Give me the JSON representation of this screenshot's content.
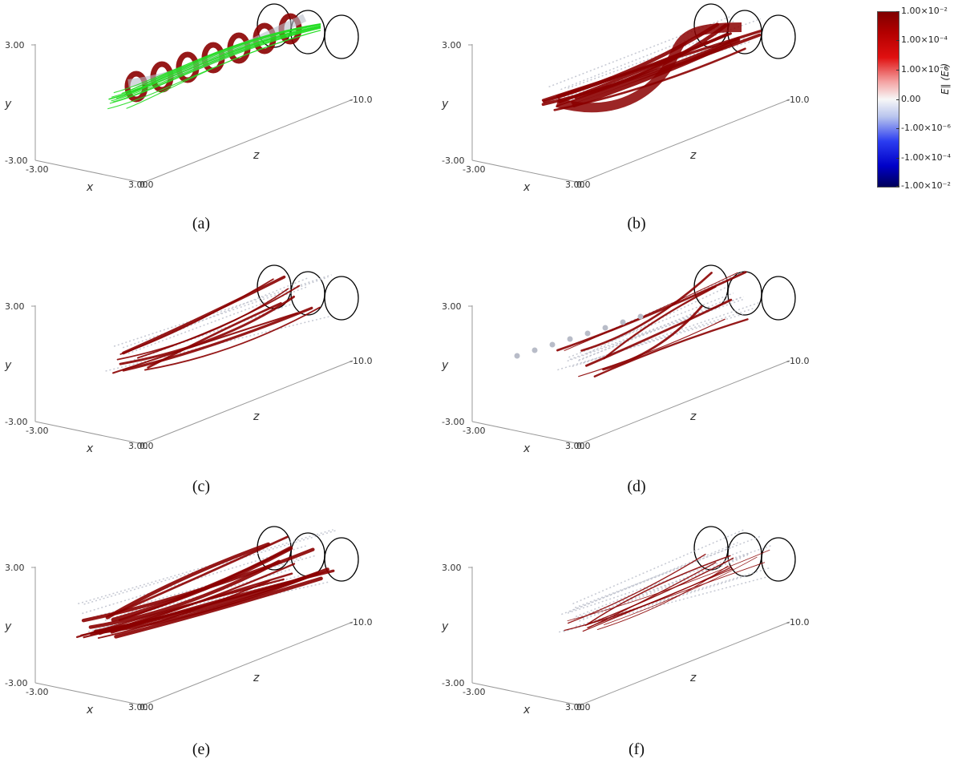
{
  "panels": [
    {
      "id": "a",
      "caption": "(a)",
      "y_max": "3.00",
      "y_min": "-3.00",
      "x_min": "-3.00",
      "x_max": "3.00",
      "z_start": "0.0",
      "z_end": "-10.0",
      "x_axis": "x",
      "y_axis": "y",
      "z_axis": "z",
      "has_field_lines": true,
      "density": "helical"
    },
    {
      "id": "b",
      "caption": "(b)",
      "y_max": "3.00",
      "y_min": "-3.00",
      "x_min": "-3.00",
      "x_max": "3.00",
      "z_start": "0.0",
      "z_end": "-10.0",
      "x_axis": "x",
      "y_axis": "y",
      "z_axis": "z",
      "has_field_lines": false,
      "density": "sheet"
    },
    {
      "id": "c",
      "caption": "(c)",
      "y_max": "3.00",
      "y_min": "-3.00",
      "x_min": "-3.00",
      "x_max": "3.00",
      "z_start": "0.0",
      "z_end": "-10.0",
      "x_axis": "x",
      "y_axis": "y",
      "z_axis": "z",
      "has_field_lines": false,
      "density": "sparse"
    },
    {
      "id": "d",
      "caption": "(d)",
      "y_max": "3.00",
      "y_min": "-3.00",
      "x_min": "-3.00",
      "x_max": "3.00",
      "z_start": "0.0",
      "z_end": "-10.0",
      "x_axis": "x",
      "y_axis": "y",
      "z_axis": "z",
      "has_field_lines": false,
      "density": "streaks"
    },
    {
      "id": "e",
      "caption": "(e)",
      "y_max": "3.00",
      "y_min": "-3.00",
      "x_min": "-3.00",
      "x_max": "3.00",
      "z_start": "0.0",
      "z_end": "-10.0",
      "x_axis": "x",
      "y_axis": "y",
      "z_axis": "z",
      "has_field_lines": false,
      "density": "dense"
    },
    {
      "id": "f",
      "caption": "(f)",
      "y_max": "3.00",
      "y_min": "-3.00",
      "x_min": "-3.00",
      "x_max": "3.00",
      "z_start": "0.0",
      "z_end": "-10.0",
      "x_axis": "x",
      "y_axis": "y",
      "z_axis": "z",
      "has_field_lines": false,
      "density": "faint"
    }
  ],
  "colorbar": {
    "title": "E∥ (E₀)",
    "ticks": [
      "1.00×10⁻²",
      "1.00×10⁻⁴",
      "1.00×10⁻⁶",
      "0.00",
      "-1.00×10⁻⁶",
      "-1.00×10⁻⁴",
      "-1.00×10⁻²"
    ],
    "colors": {
      "max": "#7f0000",
      "zero": "#f7f7f7",
      "min": "#00005a"
    }
  },
  "colors": {
    "positive": "#8b0000",
    "neutral": "#b8bcc8",
    "field_lines": "#22dd22",
    "circles": "#000000"
  }
}
